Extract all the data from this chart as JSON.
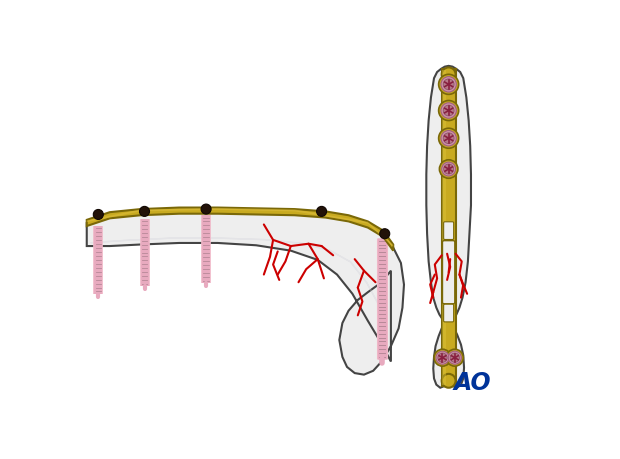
{
  "bg_color": "#ffffff",
  "bone_color": "#eeeeee",
  "bone_color2": "#e8e8ec",
  "bone_edge_color": "#444444",
  "plate_color": "#c8aa20",
  "plate_edge_color": "#7a6808",
  "plate_color2": "#d4b830",
  "screw_body_color": "#f0b8c8",
  "screw_thread_color": "#c898a8",
  "screw_head_dark": "#1a0a08",
  "screw_pink": "#d8a0b5",
  "screw_pink2": "#c08898",
  "screw_star_color": "#882040",
  "fracture_color": "#cc0000",
  "ao_color": "#003399",
  "shadow_color": "#d0d0d8"
}
